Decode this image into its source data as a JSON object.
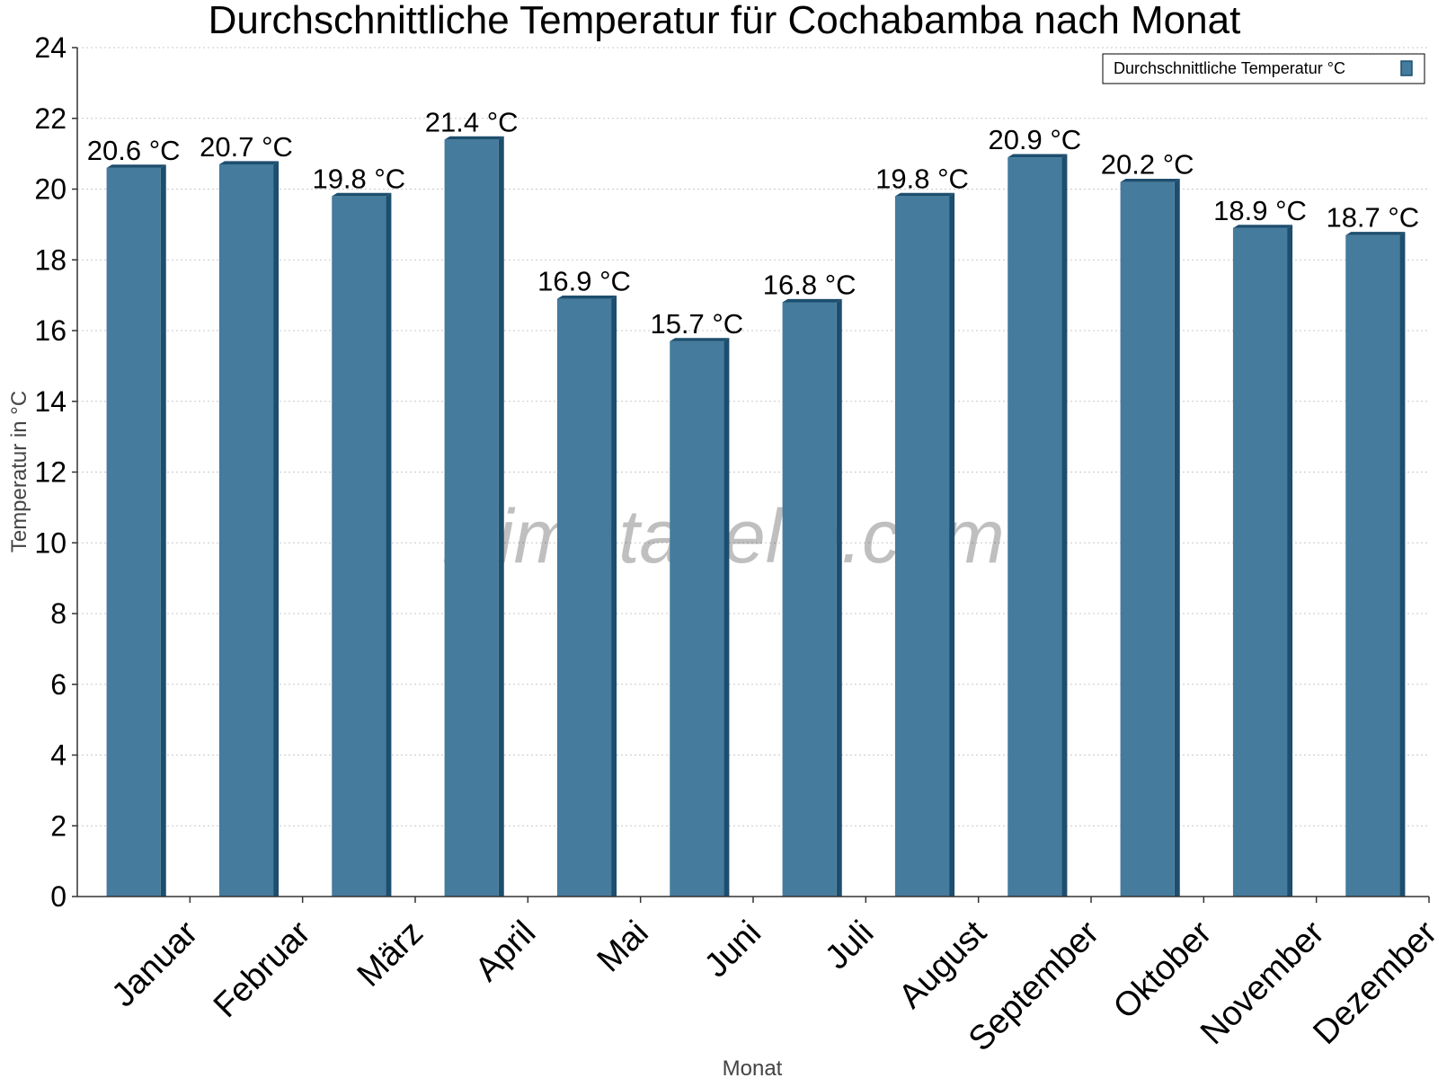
{
  "chart_data": {
    "type": "bar",
    "title": "Durchschnittliche Temperatur für Cochabamba nach Monat",
    "xlabel": "Monat",
    "ylabel": "Temperatur in °C",
    "categories": [
      "Januar",
      "Februar",
      "März",
      "April",
      "Mai",
      "Juni",
      "Juli",
      "August",
      "September",
      "Oktober",
      "November",
      "Dezember"
    ],
    "series": [
      {
        "name": "Durchschnittliche Temperatur °C",
        "values": [
          20.6,
          20.7,
          19.8,
          21.4,
          16.9,
          15.7,
          16.8,
          19.8,
          20.9,
          20.2,
          18.9,
          18.7
        ],
        "color": "#457b9d"
      }
    ],
    "value_labels": [
      "20.6 °C",
      "20.7 °C",
      "19.8 °C",
      "21.4 °C",
      "16.9 °C",
      "15.7 °C",
      "16.8 °C",
      "19.8 °C",
      "20.9 °C",
      "20.2 °C",
      "18.9 °C",
      "18.7 °C"
    ],
    "ylim": [
      0,
      24
    ],
    "yticks": [
      "0",
      "2",
      "4",
      "6",
      "8",
      "10",
      "12",
      "14",
      "16",
      "18",
      "20",
      "22",
      "24"
    ],
    "grid": true,
    "legend_position": "top-right",
    "watermark": "klimatabelle.com"
  }
}
